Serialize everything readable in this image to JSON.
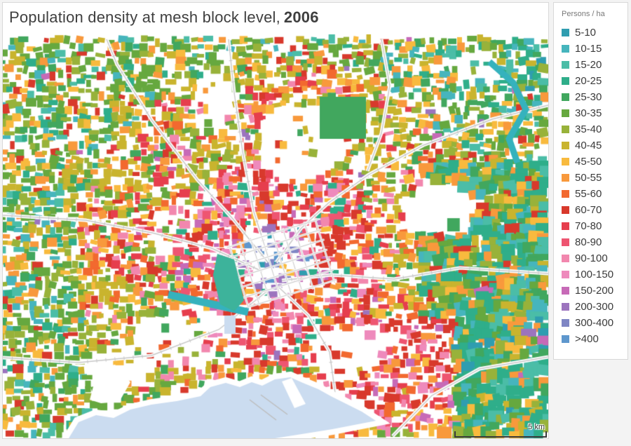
{
  "title": {
    "text": "Population density at mesh block level,",
    "year": "2006"
  },
  "legend": {
    "title": "Persons / ha",
    "items": [
      {
        "label": "5-10",
        "color": "#2f9db0"
      },
      {
        "label": "10-15",
        "color": "#46b5bd"
      },
      {
        "label": "15-20",
        "color": "#4bbda7"
      },
      {
        "label": "20-25",
        "color": "#2fae8a"
      },
      {
        "label": "25-30",
        "color": "#41a75e"
      },
      {
        "label": "30-35",
        "color": "#66a83f"
      },
      {
        "label": "35-40",
        "color": "#98b23a"
      },
      {
        "label": "40-45",
        "color": "#c9b42e"
      },
      {
        "label": "45-50",
        "color": "#f8ba3e"
      },
      {
        "label": "50-55",
        "color": "#f8993c"
      },
      {
        "label": "55-60",
        "color": "#f2692f"
      },
      {
        "label": "60-70",
        "color": "#d8392c"
      },
      {
        "label": "70-80",
        "color": "#e63e4d"
      },
      {
        "label": "80-90",
        "color": "#ee5571"
      },
      {
        "label": "90-100",
        "color": "#f287ae"
      },
      {
        "label": "100-150",
        "color": "#ee8abc"
      },
      {
        "label": "150-200",
        "color": "#c76ab7"
      },
      {
        "label": "200-300",
        "color": "#9c74be"
      },
      {
        "label": "300-400",
        "color": "#7f86c4"
      },
      {
        "label": ">400",
        "color": "#5e97cd"
      }
    ]
  },
  "map": {
    "scale_label": "5 km",
    "colors": {
      "background": "#ffffff",
      "page_background": "#f3f3f3",
      "panel_border": "#d8d8d8",
      "water": "#cbdcf0",
      "river": "#35b2bd",
      "road": "#c7c7c7",
      "pier_line": "#bdbdbd",
      "park_green": "#41a75e",
      "park_teal": "#3db39b"
    }
  }
}
